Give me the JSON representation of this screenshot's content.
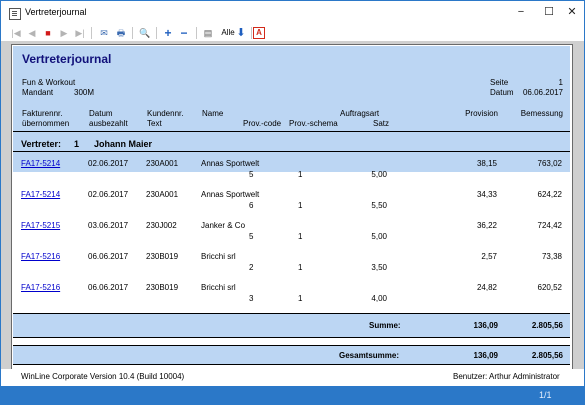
{
  "window": {
    "title": "Vertreterjournal",
    "minimize_glyph": "−",
    "maximize_glyph": "☐",
    "close_glyph": "✕"
  },
  "toolbar": {
    "first_icon": "|◀",
    "prev_icon": "◀",
    "stop_icon": "■",
    "next_icon": "▶",
    "last_icon": "▶|",
    "open_icon": "✉",
    "print_icon": "🖶",
    "search_icon": "🔍",
    "zoom_in_icon": "+",
    "zoom_out_icon": "−",
    "page_icon": "▤",
    "all_label": "Alle",
    "export_icon": "⬇",
    "pdf_icon": "A"
  },
  "report": {
    "title": "Vertreterjournal",
    "company": "Fun & Workout",
    "mandant_label": "Mandant",
    "mandant_value": "300M",
    "seite_label": "Seite",
    "seite_value": "1",
    "datum_label": "Datum",
    "datum_value": "06.06.2017"
  },
  "columns": {
    "fakturennr": "Fakturennr.",
    "uebernommen": "übernommen",
    "datum": "Datum",
    "ausbezahlt": "ausbezahlt",
    "kundennr": "Kundennr.",
    "text": "Text",
    "name": "Name",
    "auftragsart": "Auftragsart",
    "provcode": "Prov.-code",
    "provschema": "Prov.-schema",
    "satz": "Satz",
    "provision": "Provision",
    "bemessung": "Bemessung"
  },
  "group": {
    "label": "Vertreter:",
    "number": "1",
    "name": "Johann Maier"
  },
  "rows": [
    {
      "fakturennr": "FA17-5214",
      "datum": "02.06.2017",
      "kundennr": "230A001",
      "name": "Annas Sportwelt",
      "provcode": "5",
      "provschema": "1",
      "satz": "5,00",
      "provision": "38,15",
      "bemessung": "763,02"
    },
    {
      "fakturennr": "FA17-5214",
      "datum": "02.06.2017",
      "kundennr": "230A001",
      "name": "Annas Sportwelt",
      "provcode": "6",
      "provschema": "1",
      "satz": "5,50",
      "provision": "34,33",
      "bemessung": "624,22"
    },
    {
      "fakturennr": "FA17-5215",
      "datum": "03.06.2017",
      "kundennr": "230J002",
      "name": "Janker & Co",
      "provcode": "5",
      "provschema": "1",
      "satz": "5,00",
      "provision": "36,22",
      "bemessung": "724,42"
    },
    {
      "fakturennr": "FA17-5216",
      "datum": "06.06.2017",
      "kundennr": "230B019",
      "name": "Bricchi srl",
      "provcode": "2",
      "provschema": "1",
      "satz": "3,50",
      "provision": "2,57",
      "bemessung": "73,38"
    },
    {
      "fakturennr": "FA17-5216",
      "datum": "06.06.2017",
      "kundennr": "230B019",
      "name": "Bricchi srl",
      "provcode": "3",
      "provschema": "1",
      "satz": "4,00",
      "provision": "24,82",
      "bemessung": "620,52"
    }
  ],
  "summe": {
    "label": "Summe:",
    "provision": "136,09",
    "bemessung": "2.805,56"
  },
  "gesamtsumme": {
    "label": "Gesamtsumme:",
    "provision": "136,09",
    "bemessung": "2.805,56"
  },
  "footer": {
    "version": "WinLine Corporate Version 10.4 (Build 10004)",
    "benutzer": "Benutzer: Arthur Administrator"
  },
  "status": {
    "page": "1/1"
  },
  "colors": {
    "header_band": "#bcd6f3",
    "title_blue": "#11117a",
    "statusbar": "#2b78c8",
    "link": "#0000cc"
  }
}
